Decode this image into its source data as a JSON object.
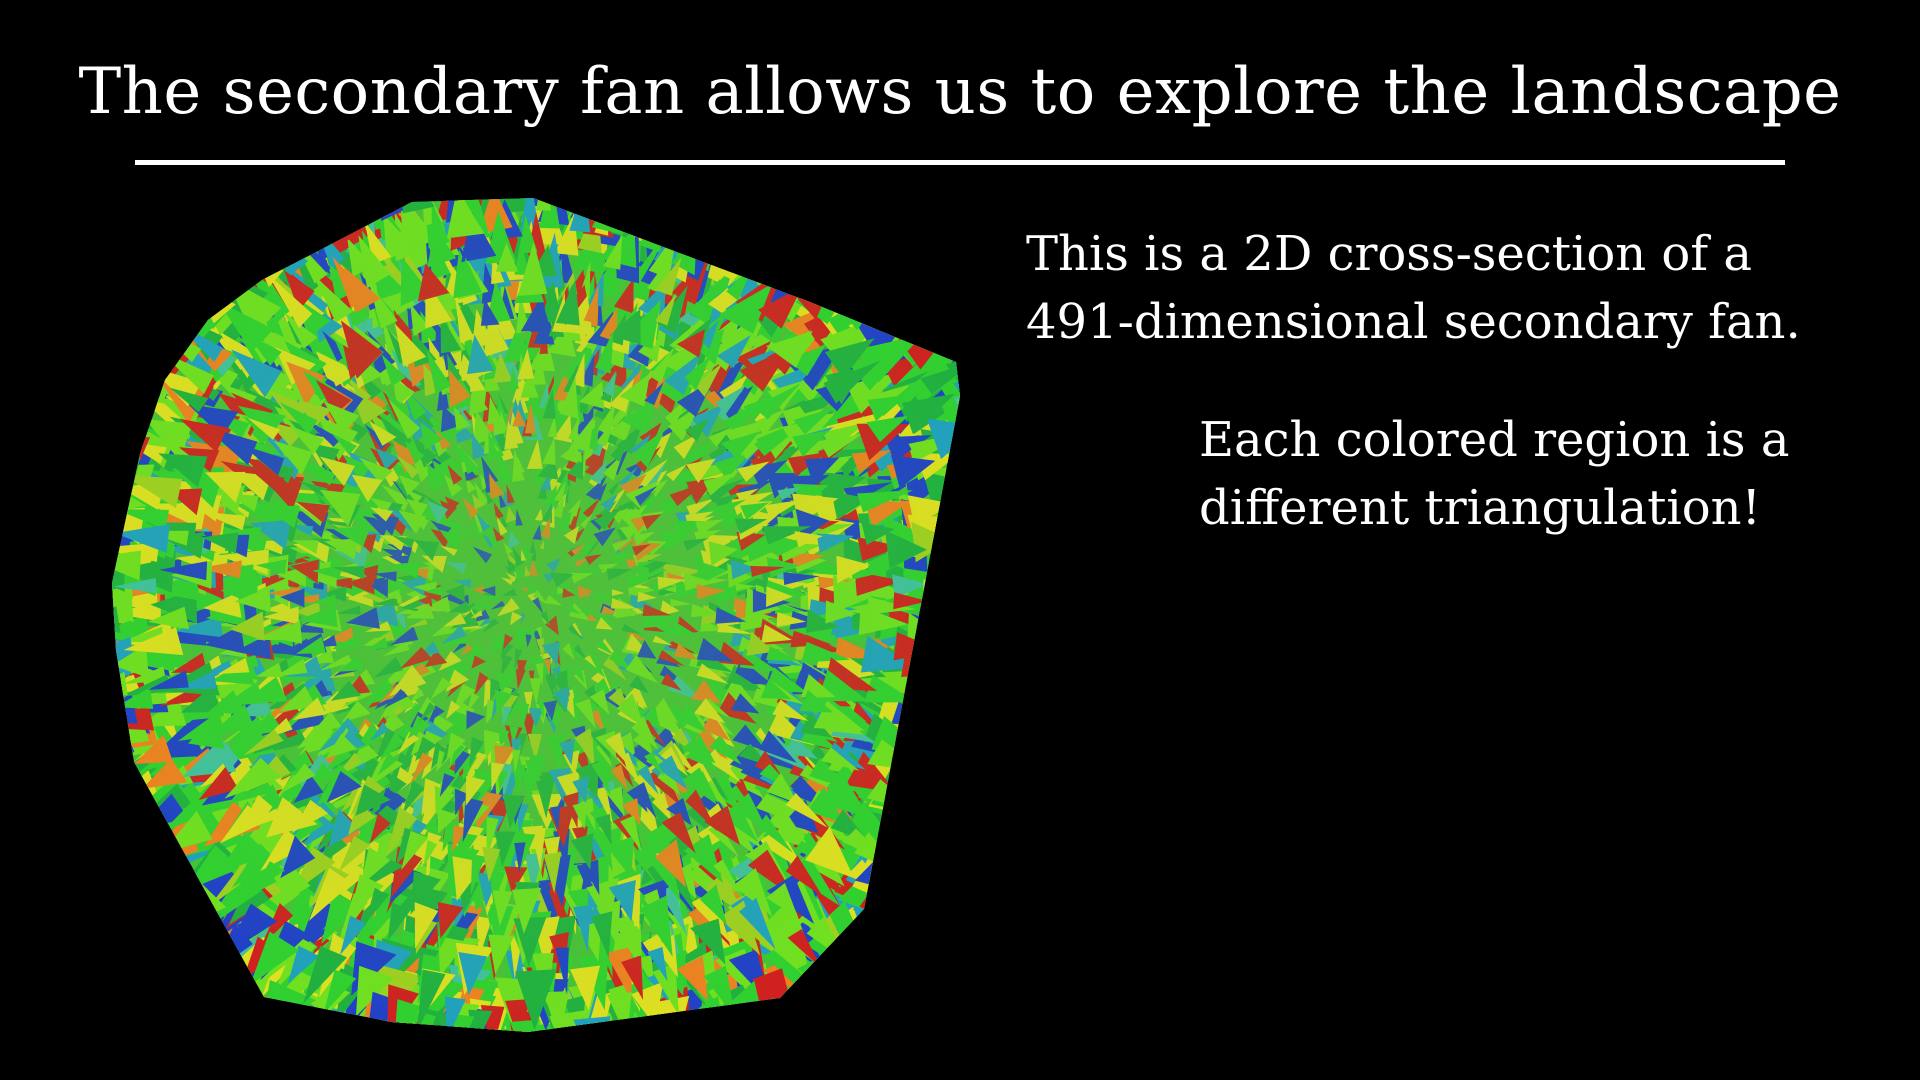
{
  "slide": {
    "title": "The secondary fan allows us to explore the landscape",
    "caption_1": {
      "line_1": "This is a 2D cross-section of a",
      "line_2": "491-dimensional secondary fan."
    },
    "caption_2": {
      "line_1": "Each colored region is a",
      "line_2": "different triangulation!"
    }
  },
  "figure": {
    "background": "#000000",
    "palette": [
      "#30d030",
      "#70e020",
      "#20b040",
      "#e0e020",
      "#2040c8",
      "#d02020",
      "#20a0c0",
      "#f08020",
      "#a0d020",
      "#40c0a0"
    ]
  }
}
